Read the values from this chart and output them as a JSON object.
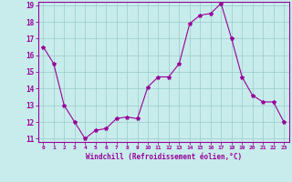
{
  "x": [
    0,
    1,
    2,
    3,
    4,
    5,
    6,
    7,
    8,
    9,
    10,
    11,
    12,
    13,
    14,
    15,
    16,
    17,
    18,
    19,
    20,
    21,
    22,
    23
  ],
  "y": [
    16.5,
    15.5,
    13.0,
    12.0,
    11.0,
    11.5,
    11.6,
    12.2,
    12.3,
    12.2,
    14.1,
    14.7,
    14.7,
    15.5,
    17.9,
    18.4,
    18.5,
    19.1,
    17.0,
    14.7,
    13.6,
    13.2,
    13.2,
    12.0
  ],
  "line_color": "#990099",
  "marker": "*",
  "marker_size": 3,
  "background_color": "#c8ecec",
  "grid_color": "#a0d0d0",
  "xlabel": "Windchill (Refroidissement éolien,°C)",
  "xlabel_color": "#990099",
  "tick_color": "#990099",
  "ylim": [
    11,
    19
  ],
  "xlim": [
    -0.5,
    23.5
  ],
  "yticks": [
    11,
    12,
    13,
    14,
    15,
    16,
    17,
    18,
    19
  ],
  "xticks": [
    0,
    1,
    2,
    3,
    4,
    5,
    6,
    7,
    8,
    9,
    10,
    11,
    12,
    13,
    14,
    15,
    16,
    17,
    18,
    19,
    20,
    21,
    22,
    23
  ],
  "xtick_labels": [
    "0",
    "1",
    "2",
    "3",
    "4",
    "5",
    "6",
    "7",
    "8",
    "9",
    "10",
    "11",
    "12",
    "13",
    "14",
    "15",
    "16",
    "17",
    "18",
    "19",
    "20",
    "21",
    "22",
    "23"
  ],
  "ytick_labels": [
    "11",
    "12",
    "13",
    "14",
    "15",
    "16",
    "17",
    "18",
    "19"
  ],
  "spine_color": "#990099"
}
